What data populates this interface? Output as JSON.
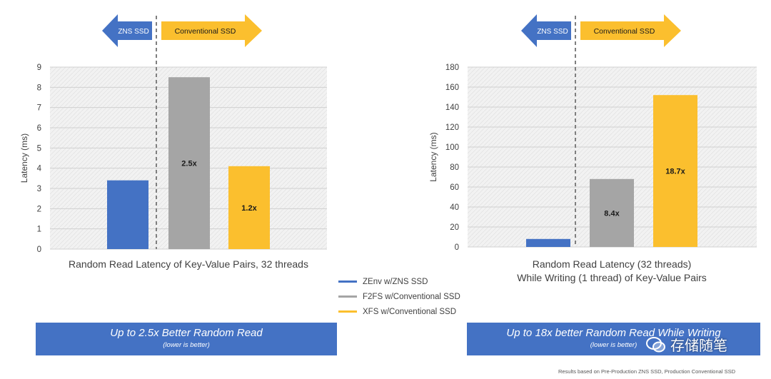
{
  "chart_data": [
    {
      "type": "bar",
      "categories": [
        "ZEnv w/ZNS SSD",
        "F2FS w/Conventional SSD",
        "XFS w/Conventional SSD"
      ],
      "values": [
        3.4,
        8.5,
        4.1
      ],
      "data_labels": [
        "",
        "2.5x",
        "1.2x"
      ],
      "title": "Random Read Latency of Key-Value Pairs, 32 threads",
      "xlabel": "",
      "ylabel": "Latency (ms)",
      "ylim": [
        0,
        9
      ],
      "yticks": [
        0,
        1,
        2,
        3,
        4,
        5,
        6,
        7,
        8,
        9
      ],
      "grid": true,
      "colors": [
        "#4472c4",
        "#a5a5a5",
        "#fbbf2e"
      ]
    },
    {
      "type": "bar",
      "categories": [
        "ZEnv w/ZNS SSD",
        "F2FS w/Conventional SSD",
        "XFS w/Conventional SSD"
      ],
      "values": [
        8,
        68,
        152
      ],
      "data_labels": [
        "",
        "8.4x",
        "18.7x"
      ],
      "title": [
        "Random Read Latency (32 threads)",
        "While Writing (1 thread) of Key-Value Pairs"
      ],
      "xlabel": "",
      "ylabel": "Latency (ms)",
      "ylim": [
        0,
        180
      ],
      "yticks": [
        0,
        20,
        40,
        60,
        80,
        100,
        120,
        140,
        160,
        180
      ],
      "grid": true,
      "colors": [
        "#4472c4",
        "#a5a5a5",
        "#fbbf2e"
      ]
    }
  ],
  "arrows": {
    "left_label": "ZNS SSD",
    "right_label": "Conventional SSD",
    "left_color": "#4472c4",
    "right_color": "#fbbf2e"
  },
  "legend": {
    "placement": "bottom-center",
    "items": [
      {
        "label": "ZEnv w/ZNS SSD",
        "color": "#4472c4"
      },
      {
        "label": "F2FS w/Conventional SSD",
        "color": "#a5a5a5"
      },
      {
        "label": "XFS w/Conventional SSD",
        "color": "#fbbf2e"
      }
    ]
  },
  "banners": {
    "left": {
      "main": "Up to 2.5x Better Random Read",
      "sub": "(lower is better)"
    },
    "right": {
      "main": "Up to 18x better Random Read While Writing",
      "sub": "(lower is better)"
    }
  },
  "footnote": "Results based on Pre-Production ZNS SSD, Production Conventional SSD",
  "watermark": "存储随笔"
}
